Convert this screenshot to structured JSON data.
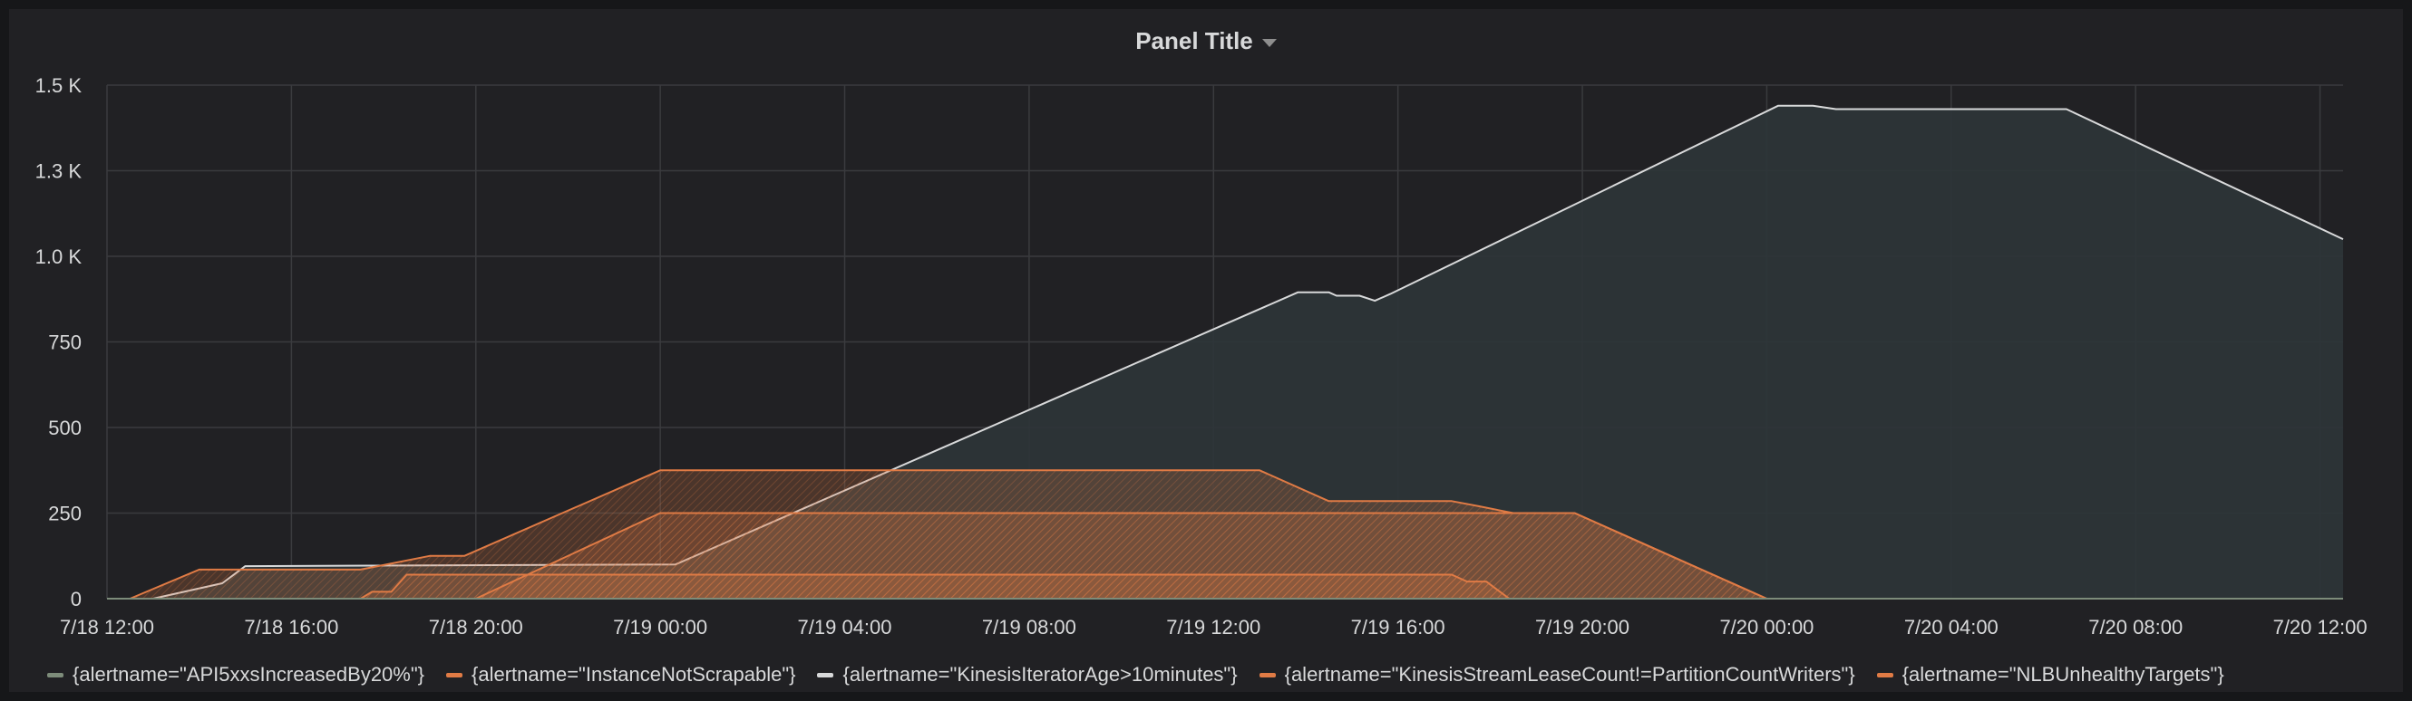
{
  "panel": {
    "title": "Panel Title"
  },
  "chart_data": {
    "type": "area",
    "title": "Panel Title",
    "xlabel": "",
    "ylabel": "",
    "x_unit": "datetime",
    "xlim": [
      "2018-07-18 12:00",
      "2018-07-20 12:30"
    ],
    "ylim": [
      0,
      1500
    ],
    "y_ticks": [
      0,
      250,
      500,
      750,
      1000,
      1250,
      1500
    ],
    "y_tick_labels": [
      "0",
      "250",
      "500",
      "750",
      "1.0 K",
      "1.3 K",
      "1.5 K"
    ],
    "x_ticks": [
      "2018-07-18 12:00",
      "2018-07-18 16:00",
      "2018-07-18 20:00",
      "2018-07-19 00:00",
      "2018-07-19 04:00",
      "2018-07-19 08:00",
      "2018-07-19 12:00",
      "2018-07-19 16:00",
      "2018-07-19 20:00",
      "2018-07-20 00:00",
      "2018-07-20 04:00",
      "2018-07-20 08:00",
      "2018-07-20 12:00"
    ],
    "x_tick_labels": [
      "7/18 12:00",
      "7/18 16:00",
      "7/18 20:00",
      "7/19 00:00",
      "7/19 04:00",
      "7/19 08:00",
      "7/19 12:00",
      "7/19 16:00",
      "7/19 20:00",
      "7/20 00:00",
      "7/20 04:00",
      "7/20 08:00",
      "7/20 12:00"
    ],
    "grid": true,
    "legend_position": "bottom",
    "series": [
      {
        "name": "{alertname=\"API5xxsIncreasedBy20%\"}",
        "color": "#7d8c7a",
        "points": [
          [
            "2018-07-18 12:00",
            0
          ],
          [
            "2018-07-19 00:00",
            0
          ],
          [
            "2018-07-19 13:45",
            0
          ],
          [
            "2018-07-20 00:00",
            0
          ],
          [
            "2018-07-20 12:30",
            0
          ]
        ]
      },
      {
        "name": "{alertname=\"InstanceNotScrapable\"}",
        "color": "#e07b45",
        "points": [
          [
            "2018-07-18 12:30",
            0
          ],
          [
            "2018-07-18 14:00",
            85
          ],
          [
            "2018-07-18 17:30",
            85
          ],
          [
            "2018-07-18 19:00",
            125
          ],
          [
            "2018-07-18 19:45",
            125
          ],
          [
            "2018-07-19 00:00",
            375
          ],
          [
            "2018-07-19 13:00",
            375
          ],
          [
            "2018-07-19 14:30",
            285
          ],
          [
            "2018-07-19 17:10",
            285
          ],
          [
            "2018-07-19 17:45",
            270
          ],
          [
            "2018-07-19 18:30",
            250
          ],
          [
            "2018-07-19 19:50",
            250
          ],
          [
            "2018-07-20 00:00",
            0
          ],
          [
            "2018-07-20 12:30",
            0
          ]
        ]
      },
      {
        "name": "{alertname=\"KinesisIteratorAge>10minutes\"}",
        "color": "#d8d9da",
        "points": [
          [
            "2018-07-18 13:00",
            0
          ],
          [
            "2018-07-18 14:30",
            45
          ],
          [
            "2018-07-18 15:00",
            95
          ],
          [
            "2018-07-19 00:20",
            100
          ],
          [
            "2018-07-19 13:50",
            895
          ],
          [
            "2018-07-19 14:30",
            895
          ],
          [
            "2018-07-19 14:40",
            885
          ],
          [
            "2018-07-19 15:10",
            885
          ],
          [
            "2018-07-19 15:30",
            870
          ],
          [
            "2018-07-19 15:50",
            890
          ],
          [
            "2018-07-20 00:15",
            1440
          ],
          [
            "2018-07-20 01:00",
            1440
          ],
          [
            "2018-07-20 01:30",
            1430
          ],
          [
            "2018-07-20 06:00",
            1430
          ],
          [
            "2018-07-20 06:30",
            1430
          ],
          [
            "2018-07-20 12:30",
            1050
          ]
        ]
      },
      {
        "name": "{alertname=\"KinesisStreamLeaseCount!=PartitionCountWriters\"}",
        "color": "#e07b45",
        "points": [
          [
            "2018-07-18 20:00",
            0
          ],
          [
            "2018-07-19 00:00",
            250
          ],
          [
            "2018-07-19 18:30",
            250
          ],
          [
            "2018-07-19 19:50",
            250
          ],
          [
            "2018-07-20 00:00",
            0
          ],
          [
            "2018-07-20 12:30",
            0
          ]
        ]
      },
      {
        "name": "{alertname=\"NLBUnhealthyTargets\"}",
        "color": "#e07b45",
        "points": [
          [
            "2018-07-18 17:30",
            0
          ],
          [
            "2018-07-18 17:45",
            20
          ],
          [
            "2018-07-18 18:10",
            20
          ],
          [
            "2018-07-18 18:30",
            70
          ],
          [
            "2018-07-19 17:10",
            70
          ],
          [
            "2018-07-19 17:30",
            50
          ],
          [
            "2018-07-19 17:55",
            50
          ],
          [
            "2018-07-19 18:25",
            0
          ],
          [
            "2018-07-20 12:30",
            0
          ]
        ]
      }
    ]
  }
}
